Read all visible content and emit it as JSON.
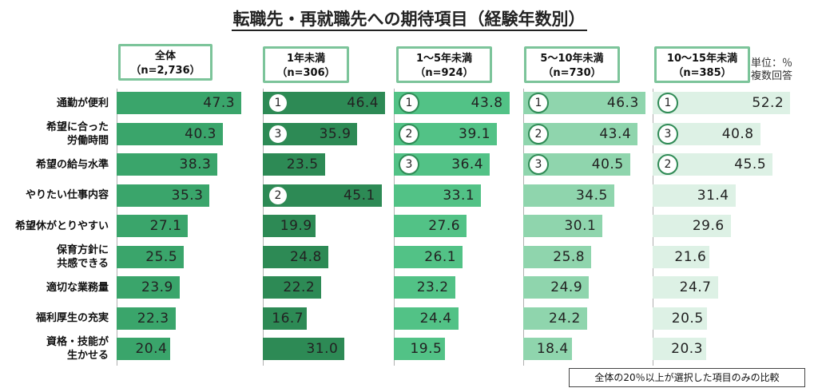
{
  "title": "転職先・再就職先への期待項目（経験年数別）",
  "unit_note": {
    "line1": "単位：％",
    "line2": "複数回答"
  },
  "footnote": "全体の20％以上が選択した項目のみの比較",
  "columns": [
    {
      "name": "全体",
      "n": "（n=2,736）"
    },
    {
      "name": "1年未満",
      "n": "（n=306）"
    },
    {
      "name": "1～5年未満",
      "n": "（n=924）"
    },
    {
      "name": "5～10年未満",
      "n": "（n=730）"
    },
    {
      "name": "10～15年未満",
      "n": "（n=385）"
    }
  ],
  "categories": [
    [
      "通勤が便利"
    ],
    [
      "希望に合った",
      "労働時間"
    ],
    [
      "希望の給与水準"
    ],
    [
      "やりたい仕事内容"
    ],
    [
      "希望休がとりやすい"
    ],
    [
      "保育方針に",
      "共感できる"
    ],
    [
      "適切な業務量"
    ],
    [
      "福利厚生の充実"
    ],
    [
      "資格・技能が",
      "生かせる"
    ]
  ],
  "colors": {
    "header_border": "#7cc49a",
    "series": [
      "#3aa56b",
      "#2d8a55",
      "#52c286",
      "#8fd5ad",
      "#ddf1e5"
    ],
    "rank_border": "#2f8a55"
  },
  "chart_data": {
    "type": "bar",
    "orientation": "horizontal",
    "title": "転職先・再就職先への期待項目（経験年数別）",
    "unit": "％",
    "categories": [
      "通勤が便利",
      "希望に合った労働時間",
      "希望の給与水準",
      "やりたい仕事内容",
      "希望休がとりやすい",
      "保育方針に共感できる",
      "適切な業務量",
      "福利厚生の充実",
      "資格・技能が生かせる"
    ],
    "series": [
      {
        "name": "全体（n=2,736）",
        "values": [
          47.3,
          40.3,
          38.3,
          35.3,
          27.1,
          25.5,
          23.9,
          22.3,
          20.4
        ],
        "ranks": [
          null,
          null,
          null,
          null,
          null,
          null,
          null,
          null,
          null
        ]
      },
      {
        "name": "1年未満（n=306）",
        "values": [
          46.4,
          35.9,
          23.5,
          45.1,
          19.9,
          24.8,
          22.2,
          16.7,
          31.0
        ],
        "ranks": [
          1,
          3,
          null,
          2,
          null,
          null,
          null,
          null,
          null
        ]
      },
      {
        "name": "1～5年未満（n=924）",
        "values": [
          43.8,
          39.1,
          36.4,
          33.1,
          27.6,
          26.1,
          23.2,
          24.4,
          19.5
        ],
        "ranks": [
          1,
          2,
          3,
          null,
          null,
          null,
          null,
          null,
          null
        ]
      },
      {
        "name": "5～10年未満（n=730）",
        "values": [
          46.3,
          43.4,
          40.5,
          34.5,
          30.1,
          25.8,
          24.9,
          24.2,
          18.4
        ],
        "ranks": [
          1,
          2,
          3,
          null,
          null,
          null,
          null,
          null,
          null
        ]
      },
      {
        "name": "10～15年未満（n=385）",
        "values": [
          52.2,
          40.8,
          45.5,
          31.4,
          29.6,
          21.6,
          24.7,
          20.5,
          20.3
        ],
        "ranks": [
          1,
          3,
          2,
          null,
          null,
          null,
          null,
          null,
          null
        ]
      }
    ]
  }
}
